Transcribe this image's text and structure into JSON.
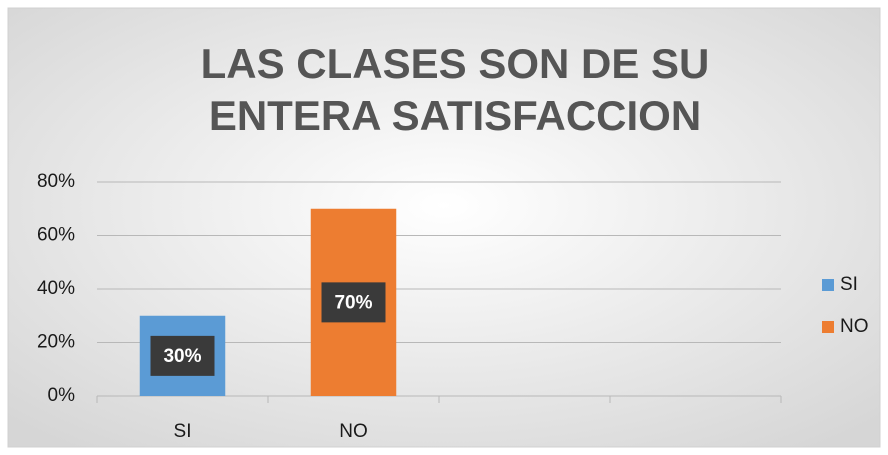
{
  "chart_data": {
    "type": "bar",
    "title": "LAS CLASES SON DE SU ENTERA SATISFACCION",
    "categories": [
      "SI",
      "NO",
      null,
      null
    ],
    "series": [
      {
        "name": "SI",
        "color": "#5b9bd5",
        "values": [
          30,
          null,
          null,
          null
        ],
        "value_labels": [
          "30%",
          null,
          null,
          null
        ]
      },
      {
        "name": "NO",
        "color": "#ed7d31",
        "values": [
          null,
          70,
          null,
          null
        ],
        "value_labels": [
          null,
          "70%",
          null,
          null
        ]
      }
    ],
    "ylim": [
      0,
      80
    ],
    "yticks": [
      {
        "value": 0,
        "label": "0%"
      },
      {
        "value": 20,
        "label": "20%"
      },
      {
        "value": 40,
        "label": "40%"
      },
      {
        "value": 60,
        "label": "60%"
      },
      {
        "value": 80,
        "label": "80%"
      }
    ],
    "grid": true,
    "legend": "right"
  }
}
